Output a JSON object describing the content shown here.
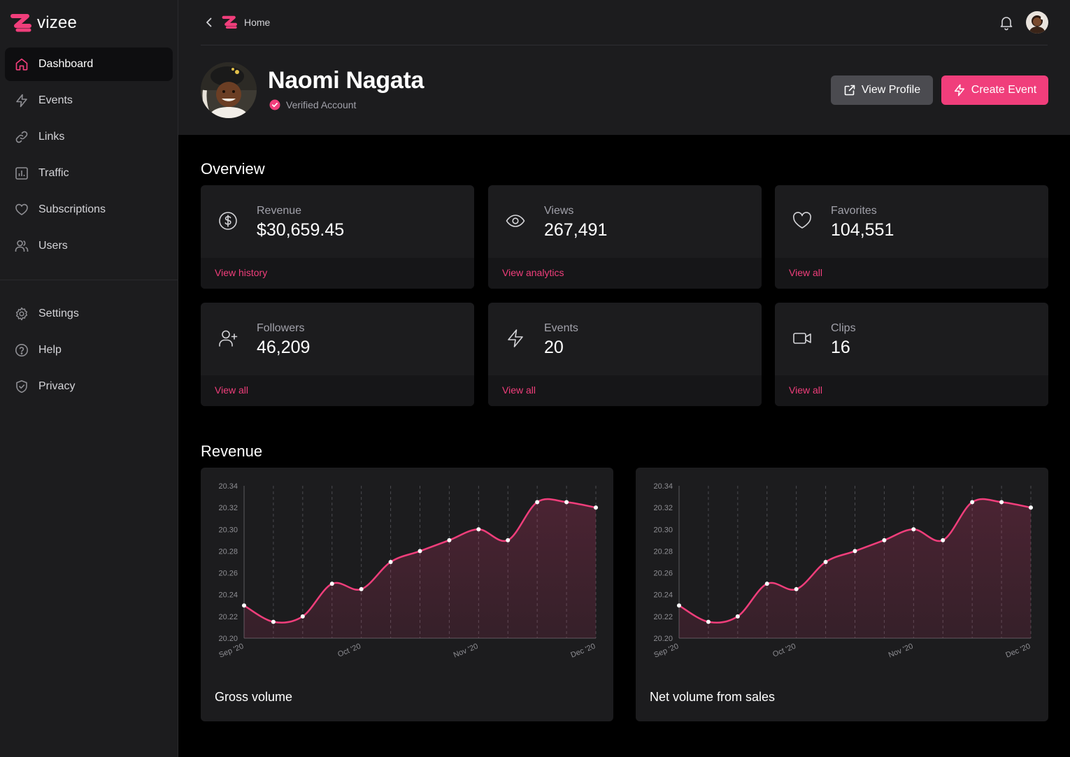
{
  "app": {
    "brand": "vizee",
    "accent": "#f03e7b"
  },
  "sidebar": {
    "items": [
      {
        "label": "Dashboard",
        "icon": "home-icon",
        "active": true
      },
      {
        "label": "Events",
        "icon": "bolt-icon"
      },
      {
        "label": "Links",
        "icon": "link-icon"
      },
      {
        "label": "Traffic",
        "icon": "bar-chart-icon"
      },
      {
        "label": "Subscriptions",
        "icon": "heart-icon"
      },
      {
        "label": "Users",
        "icon": "users-icon"
      }
    ],
    "secondary": [
      {
        "label": "Settings",
        "icon": "gear-icon"
      },
      {
        "label": "Help",
        "icon": "help-circle-icon"
      },
      {
        "label": "Privacy",
        "icon": "shield-check-icon"
      }
    ]
  },
  "header": {
    "breadcrumb": "Home",
    "profile_name": "Naomi Nagata",
    "verified_label": "Verified Account",
    "view_profile_label": "View Profile",
    "create_event_label": "Create Event"
  },
  "overview": {
    "title": "Overview",
    "cards": [
      {
        "label": "Revenue",
        "value": "$30,659.45",
        "link": "View history",
        "icon": "dollar-circle-icon"
      },
      {
        "label": "Views",
        "value": "267,491",
        "link": "View analytics",
        "icon": "eye-icon"
      },
      {
        "label": "Favorites",
        "value": "104,551",
        "link": "View all",
        "icon": "heart-icon"
      },
      {
        "label": "Followers",
        "value": "46,209",
        "link": "View all",
        "icon": "user-plus-icon"
      },
      {
        "label": "Events",
        "value": "20",
        "link": "View all",
        "icon": "bolt-icon"
      },
      {
        "label": "Clips",
        "value": "16",
        "link": "View all",
        "icon": "video-icon"
      }
    ]
  },
  "revenue": {
    "title": "Revenue"
  },
  "chart_data": [
    {
      "type": "area",
      "title": "Gross volume",
      "x_ticks": [
        "Sep '20",
        "Oct '20",
        "Nov '20",
        "Dec '20"
      ],
      "y_ticks": [
        "20.20",
        "20.22",
        "20.24",
        "20.26",
        "20.28",
        "20.30",
        "20.32",
        "20.34"
      ],
      "ylim": [
        20.2,
        20.34
      ],
      "grid": true,
      "line_color": "#f03e7b",
      "values": [
        20.23,
        20.215,
        20.22,
        20.25,
        20.245,
        20.27,
        20.28,
        20.29,
        20.3,
        20.29,
        20.325,
        20.325,
        20.32
      ]
    },
    {
      "type": "area",
      "title": "Net volume from sales",
      "x_ticks": [
        "Sep '20",
        "Oct '20",
        "Nov '20",
        "Dec '20"
      ],
      "y_ticks": [
        "20.20",
        "20.22",
        "20.24",
        "20.26",
        "20.28",
        "20.30",
        "20.32",
        "20.34"
      ],
      "ylim": [
        20.2,
        20.34
      ],
      "grid": true,
      "line_color": "#f03e7b",
      "values": [
        20.23,
        20.215,
        20.22,
        20.25,
        20.245,
        20.27,
        20.28,
        20.29,
        20.3,
        20.29,
        20.325,
        20.325,
        20.32
      ]
    }
  ]
}
